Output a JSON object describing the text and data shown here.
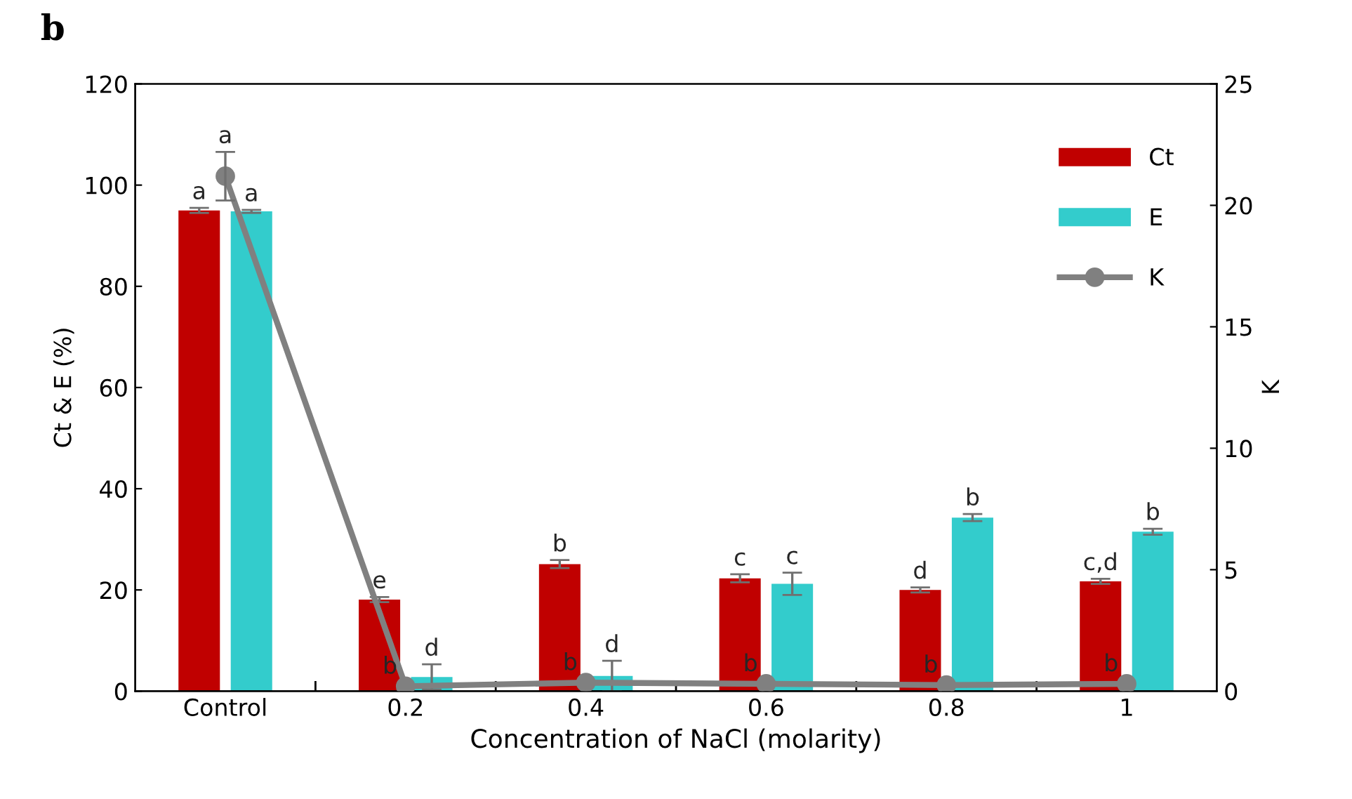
{
  "chart_data": {
    "type": "bar",
    "title": "b",
    "categories": [
      "Control",
      "0.2",
      "0.4",
      "0.6",
      "0.8",
      "1"
    ],
    "xlabel": "Concentration of NaCl (molarity)",
    "ylabel": "Ct & E (%)",
    "y2label": "K",
    "series": [
      {
        "name": "Ct",
        "color": "#c00000",
        "values": [
          95.0,
          18.1,
          25.1,
          22.3,
          20.0,
          21.7
        ],
        "errors": [
          0.5,
          0.5,
          0.8,
          0.8,
          0.5,
          0.5
        ],
        "value_labels": [
          "a",
          "e",
          "b",
          "c",
          "d",
          "c,d"
        ]
      },
      {
        "name": "E",
        "color": "#33cccc",
        "values": [
          94.8,
          2.8,
          3.0,
          21.2,
          34.3,
          31.5
        ],
        "errors": [
          0.3,
          2.5,
          3.0,
          2.2,
          0.7,
          0.6
        ],
        "value_labels": [
          "a",
          "d",
          "d",
          "c",
          "b",
          "b"
        ]
      },
      {
        "name": "K",
        "type": "line",
        "axis": "y2",
        "color": "#808080",
        "marker": "circle",
        "values": [
          21.2,
          0.2,
          0.35,
          0.3,
          0.25,
          0.3
        ],
        "errors": [
          1.0,
          null,
          null,
          null,
          null,
          null
        ],
        "value_labels": [
          "a",
          "b",
          "b",
          "b",
          "b",
          "b"
        ]
      }
    ],
    "ylim": [
      0,
      120
    ],
    "yticks": [
      0,
      20,
      40,
      60,
      80,
      100,
      120
    ],
    "y2lim": [
      0,
      25
    ],
    "y2ticks": [
      0,
      5,
      10,
      15,
      20,
      25
    ],
    "grid": false,
    "legend": "top right"
  }
}
